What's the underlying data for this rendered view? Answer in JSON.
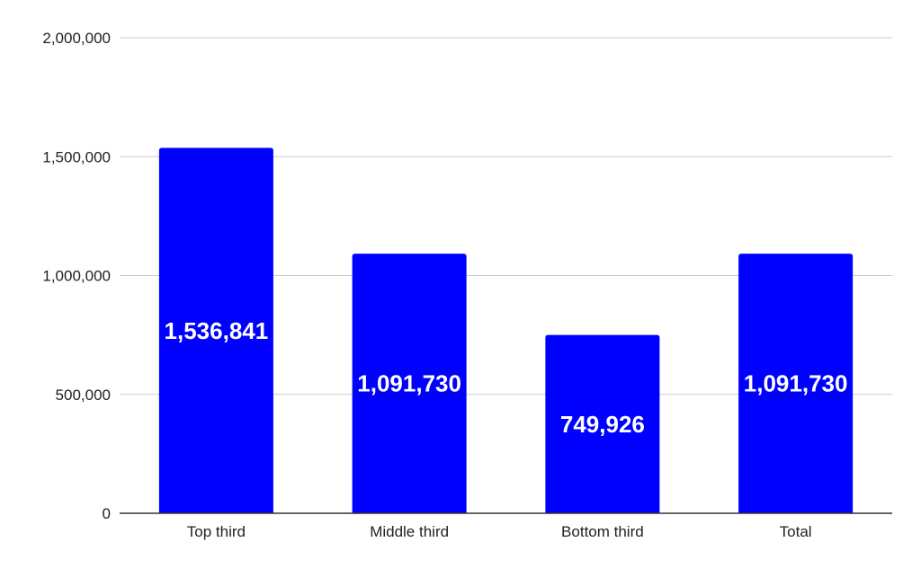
{
  "chart_data": {
    "type": "bar",
    "title": "",
    "xlabel": "",
    "ylabel": "",
    "categories": [
      "Top third",
      "Middle third",
      "Bottom third",
      "Total"
    ],
    "values": [
      1536841,
      1091730,
      749926,
      1091730
    ],
    "data_labels": [
      "1,536,841",
      "1,091,730",
      "749,926",
      "1,091,730"
    ],
    "ylim": [
      0,
      2000000
    ],
    "yticks": [
      0,
      500000,
      1000000,
      1500000,
      2000000
    ],
    "ytick_labels": [
      "0",
      "500,000",
      "1,000,000",
      "1,500,000",
      "2,000,000"
    ],
    "grid": true,
    "legend": "none",
    "colors": {
      "bar": "#0000ff",
      "grid": "#cccccc",
      "axis": "#333333",
      "label": "#ffffff",
      "text": "#222222"
    }
  }
}
